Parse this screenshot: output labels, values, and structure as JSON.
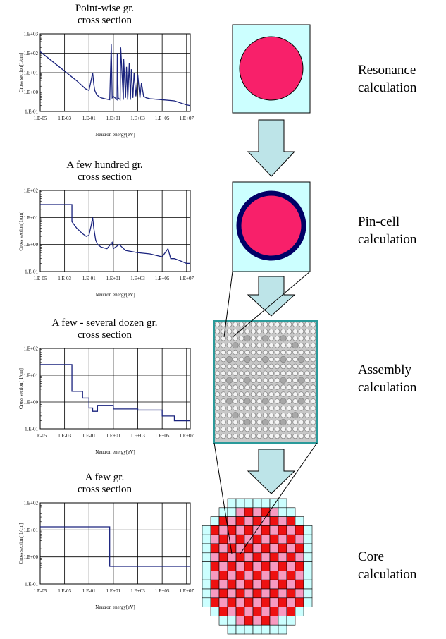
{
  "chart_data": [
    {
      "type": "line",
      "title": [
        "Point-wise gr.",
        "cross section"
      ],
      "x_label": "Neutron energy[eV]",
      "y_label": "Cross section[1/cm]",
      "xscale": "log",
      "yscale": "log",
      "grid": true,
      "color": "#1a237e",
      "x": [
        1e-05,
        0.0001,
        0.001,
        0.01,
        0.05,
        0.1,
        0.15,
        0.2,
        0.25,
        0.3,
        0.4,
        0.6,
        1,
        2,
        5,
        6.7,
        8,
        10,
        20,
        21,
        25,
        36,
        40,
        66,
        70,
        100,
        120,
        150,
        200,
        250,
        300,
        400,
        500,
        700,
        1000,
        1500,
        2000,
        3000,
        5000,
        10000,
        100000,
        1000000,
        5000000,
        10000000,
        20000000
      ],
      "values": [
        120,
        38,
        12,
        3.8,
        1.5,
        1.2,
        4,
        10,
        2.5,
        1.2,
        0.8,
        0.6,
        0.5,
        0.45,
        0.4,
        300,
        0.5,
        0.6,
        0.4,
        100,
        0.5,
        0.4,
        200,
        0.4,
        50,
        0.5,
        20,
        0.4,
        30,
        0.4,
        15,
        0.5,
        10,
        0.6,
        8,
        0.5,
        3,
        0.6,
        0.5,
        0.45,
        0.4,
        0.35,
        0.25,
        0.22,
        0.2
      ],
      "xlim": [
        1e-05,
        20000000
      ],
      "ylim": [
        0.1,
        1000
      ],
      "xticks": [
        {
          "value": 1e-05,
          "label": "1.E-05"
        },
        {
          "value": 0.001,
          "label": "1.E-03"
        },
        {
          "value": 0.1,
          "label": "1.E-01"
        },
        {
          "value": 10,
          "label": "1.E+01"
        },
        {
          "value": 1000,
          "label": "1.E+03"
        },
        {
          "value": 100000,
          "label": "1.E+05"
        },
        {
          "value": 10000000,
          "label": "1.E+07"
        }
      ],
      "yticks": [
        {
          "value": 0.1,
          "label": "1.E-01"
        },
        {
          "value": 1,
          "label": "1.E+00"
        },
        {
          "value": 10,
          "label": "1.E+01"
        },
        {
          "value": 100,
          "label": "1.E+02"
        },
        {
          "value": 1000,
          "label": "1.E+03"
        }
      ]
    },
    {
      "type": "line",
      "title": [
        "A few hundred gr.",
        "cross section"
      ],
      "x_label": "Neutron energy[eV]",
      "y_label": "Cross section[1/cm]",
      "xscale": "log",
      "yscale": "log",
      "grid": true,
      "color": "#1a237e",
      "x": [
        1e-05,
        0.004,
        0.004,
        0.01,
        0.03,
        0.06,
        0.1,
        0.15,
        0.2,
        0.25,
        0.35,
        0.5,
        1,
        3,
        8,
        10,
        30,
        100,
        1000,
        10000,
        100000,
        300000,
        500000,
        1000000,
        3000000,
        10000000,
        20000000
      ],
      "values": [
        30,
        30,
        7,
        4,
        2.5,
        2,
        2.2,
        5,
        10,
        4,
        1.5,
        1,
        0.8,
        0.7,
        1.2,
        0.7,
        1,
        0.6,
        0.5,
        0.45,
        0.35,
        0.7,
        0.3,
        0.3,
        0.25,
        0.2,
        0.2
      ],
      "xlim": [
        1e-05,
        20000000
      ],
      "ylim": [
        0.1,
        100
      ],
      "xticks": [
        {
          "value": 1e-05,
          "label": "1.E-05"
        },
        {
          "value": 0.001,
          "label": "1.E-03"
        },
        {
          "value": 0.1,
          "label": "1.E-01"
        },
        {
          "value": 10,
          "label": "1.E+01"
        },
        {
          "value": 1000,
          "label": "1.E+03"
        },
        {
          "value": 100000,
          "label": "1.E+05"
        },
        {
          "value": 10000000,
          "label": "1.E+07"
        }
      ],
      "yticks": [
        {
          "value": 0.1,
          "label": "1.E-01"
        },
        {
          "value": 1,
          "label": "1.E+00"
        },
        {
          "value": 10,
          "label": "1.E+01"
        },
        {
          "value": 100,
          "label": "1.E+02"
        }
      ]
    },
    {
      "type": "line",
      "title": [
        "A few - several dozen gr.",
        "cross section"
      ],
      "x_label": "Neutron energy[eV]",
      "y_label": "Cross section[ 1/cm]",
      "xscale": "log",
      "yscale": "log",
      "grid": true,
      "color": "#1a237e",
      "x": [
        1e-05,
        0.004,
        0.004,
        0.03,
        0.03,
        0.1,
        0.1,
        0.2,
        0.2,
        0.5,
        0.5,
        10,
        10,
        1000,
        1000,
        100000,
        100000,
        1000000,
        1000000,
        20000000
      ],
      "values": [
        25,
        25,
        2.5,
        2.5,
        1.4,
        1.4,
        0.6,
        0.6,
        0.45,
        0.45,
        0.75,
        0.75,
        0.55,
        0.55,
        0.5,
        0.5,
        0.3,
        0.3,
        0.2,
        0.2
      ],
      "xlim": [
        1e-05,
        20000000
      ],
      "ylim": [
        0.1,
        100
      ],
      "xticks": [
        {
          "value": 1e-05,
          "label": "1.E-05"
        },
        {
          "value": 0.001,
          "label": "1.E-03"
        },
        {
          "value": 0.1,
          "label": "1.E-01"
        },
        {
          "value": 10,
          "label": "1.E+01"
        },
        {
          "value": 1000,
          "label": "1.E+03"
        },
        {
          "value": 100000,
          "label": "1.E+05"
        },
        {
          "value": 10000000,
          "label": "1.E+07"
        }
      ],
      "yticks": [
        {
          "value": 0.1,
          "label": "1.E-01"
        },
        {
          "value": 1,
          "label": "1.E+00"
        },
        {
          "value": 10,
          "label": "1.E+01"
        },
        {
          "value": 100,
          "label": "1.E+02"
        }
      ]
    },
    {
      "type": "line",
      "title": [
        "A few gr.",
        "cross section"
      ],
      "x_label": "Neutron energy[eV]",
      "y_label": "Cross section[ 1/cm]",
      "xscale": "log",
      "yscale": "log",
      "grid": true,
      "color": "#1a237e",
      "x": [
        1e-05,
        5,
        5,
        20000000
      ],
      "values": [
        13,
        13,
        0.45,
        0.45
      ],
      "xlim": [
        1e-05,
        20000000
      ],
      "ylim": [
        0.1,
        100
      ],
      "xticks": [
        {
          "value": 1e-05,
          "label": "1.E-05"
        },
        {
          "value": 0.001,
          "label": "1.E-03"
        },
        {
          "value": 0.1,
          "label": "1.E-01"
        },
        {
          "value": 10,
          "label": "1.E+01"
        },
        {
          "value": 1000,
          "label": "1.E+03"
        },
        {
          "value": 100000,
          "label": "1.E+05"
        },
        {
          "value": 10000000,
          "label": "1.E+07"
        }
      ],
      "yticks": [
        {
          "value": 0.1,
          "label": "1.E-01"
        },
        {
          "value": 1,
          "label": "1.E+00"
        },
        {
          "value": 10,
          "label": "1.E+01"
        },
        {
          "value": 100,
          "label": "1.E+02"
        }
      ]
    }
  ],
  "steps": [
    [
      "Resonance",
      "calculation"
    ],
    [
      "Pin-cell",
      "calculation"
    ],
    [
      "Assembly",
      "calculation"
    ],
    [
      "Core",
      "calculation"
    ]
  ]
}
